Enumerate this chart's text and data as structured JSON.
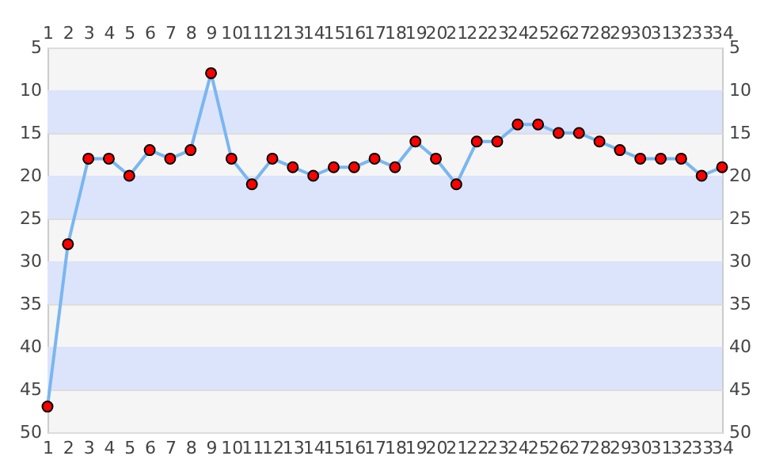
{
  "chart_data": {
    "type": "line",
    "x": [
      1,
      2,
      3,
      4,
      5,
      6,
      7,
      8,
      9,
      10,
      11,
      12,
      13,
      14,
      15,
      16,
      17,
      18,
      19,
      20,
      21,
      22,
      23,
      24,
      25,
      26,
      27,
      28,
      29,
      30,
      31,
      32,
      33,
      34
    ],
    "series": [
      {
        "color": "#7ab6f0",
        "values": [
          47,
          28,
          18,
          18,
          20,
          17,
          18,
          17,
          8,
          18,
          21,
          18,
          19,
          20,
          19,
          19,
          18,
          19,
          16,
          18,
          21,
          16,
          16,
          14,
          14,
          15,
          15,
          16,
          17,
          18,
          18,
          18,
          20,
          19
        ]
      },
      {
        "type": "scatter",
        "color": "#ff0000",
        "marker": "circle",
        "values": [
          47,
          28,
          18,
          18,
          20,
          17,
          18,
          17,
          8,
          18,
          21,
          18,
          19,
          20,
          19,
          19,
          18,
          19,
          16,
          18,
          21,
          16,
          16,
          14,
          14,
          15,
          15,
          16,
          17,
          18,
          18,
          18,
          20,
          19
        ]
      }
    ],
    "xlim": [
      1,
      34
    ],
    "xticks": [
      1,
      2,
      3,
      4,
      5,
      6,
      7,
      8,
      9,
      10,
      11,
      12,
      13,
      14,
      15,
      16,
      17,
      18,
      19,
      20,
      21,
      22,
      23,
      24,
      25,
      26,
      27,
      28,
      29,
      30,
      31,
      32,
      33,
      34
    ],
    "x2lim": [
      1,
      34
    ],
    "x2ticks": [
      1,
      2,
      3,
      4,
      5,
      6,
      7,
      8,
      9,
      10,
      11,
      12,
      13,
      14,
      15,
      16,
      17,
      18,
      19,
      20,
      21,
      22,
      23,
      24,
      25,
      26,
      27,
      28,
      29,
      30,
      31,
      32,
      33,
      34
    ],
    "ylim": [
      50,
      5
    ],
    "yticks": [
      5,
      10,
      15,
      20,
      25,
      30,
      35,
      40,
      45,
      50
    ],
    "y2lim": [
      50,
      5
    ],
    "y2ticks": [
      5,
      10,
      15,
      20,
      25,
      30,
      35,
      40,
      45,
      50
    ],
    "grid": "y",
    "bands": [
      {
        "axis": "y",
        "from": 10,
        "to": 15,
        "color": "#dce4fc"
      },
      {
        "axis": "y",
        "from": 20,
        "to": 25,
        "color": "#dce4fc"
      },
      {
        "axis": "y",
        "from": 30,
        "to": 35,
        "color": "#dce4fc"
      },
      {
        "axis": "y",
        "from": 40,
        "to": 45,
        "color": "#dce4fc"
      }
    ]
  }
}
